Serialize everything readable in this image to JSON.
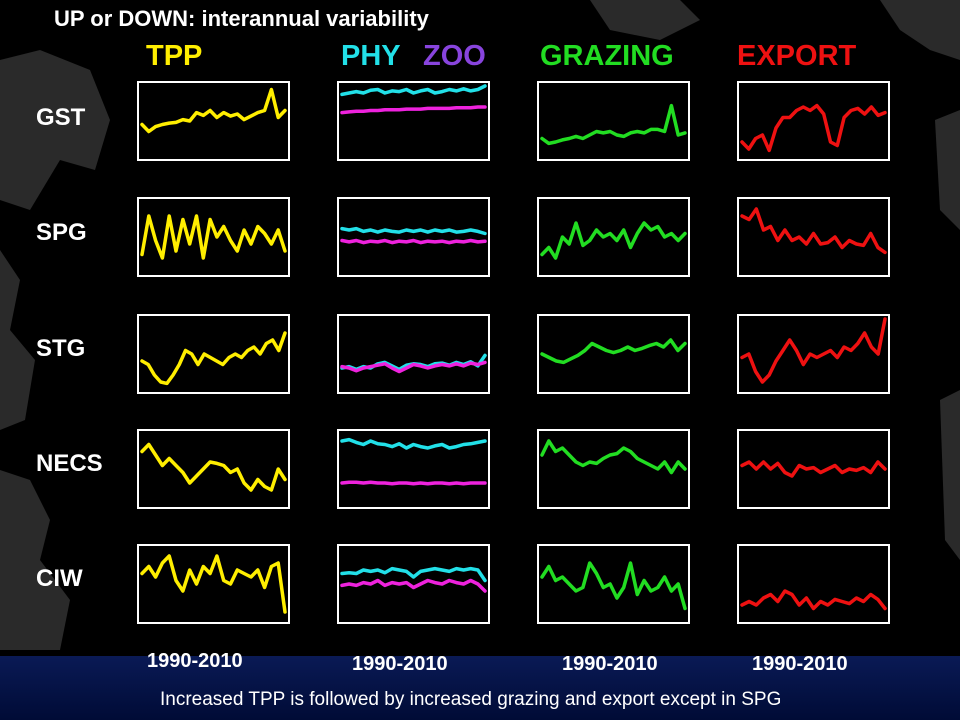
{
  "title": "UP or DOWN: interannual variability",
  "columns": [
    {
      "label": "TPP",
      "color": "#ffee00"
    },
    {
      "label": "PHY",
      "color": "#22e0e8"
    },
    {
      "label": "ZOO",
      "color": "#8844dd"
    },
    {
      "label": "GRAZING",
      "color": "#22dd22"
    },
    {
      "label": "EXPORT",
      "color": "#ee1111"
    }
  ],
  "rows": [
    "GST",
    "SPG",
    "STG",
    "NECS",
    "CIW"
  ],
  "year_labels": [
    "1990-2010",
    "1990-2010",
    "1990-2010",
    "1990-2010"
  ],
  "caption": "Increased TPP is followed by increased grazing and export except in SPG",
  "chart_data": {
    "type": "line",
    "x_range": [
      1990,
      2010
    ],
    "panels": [
      {
        "row": "GST",
        "column": "TPP",
        "series": [
          {
            "color": "#ffee00",
            "values": [
              0.45,
              0.35,
              0.42,
              0.45,
              0.47,
              0.48,
              0.52,
              0.5,
              0.62,
              0.58,
              0.65,
              0.55,
              0.62,
              0.57,
              0.6,
              0.52,
              0.57,
              0.62,
              0.65,
              0.95,
              0.55,
              0.65
            ]
          }
        ]
      },
      {
        "row": "GST",
        "column": "PHY ZOO",
        "series": [
          {
            "color": "#22e0e8",
            "values": [
              0.88,
              0.9,
              0.92,
              0.9,
              0.94,
              0.95,
              0.9,
              0.93,
              0.92,
              0.95,
              0.9,
              0.93,
              0.95,
              0.9,
              0.92,
              0.95,
              0.93,
              0.96,
              0.93,
              0.95,
              1.0
            ]
          },
          {
            "color": "#ee22dd",
            "values": [
              0.62,
              0.63,
              0.64,
              0.64,
              0.65,
              0.65,
              0.66,
              0.66,
              0.66,
              0.67,
              0.67,
              0.67,
              0.68,
              0.68,
              0.68,
              0.68,
              0.69,
              0.69,
              0.69,
              0.7,
              0.7
            ]
          }
        ]
      },
      {
        "row": "GST",
        "column": "GRAZING",
        "series": [
          {
            "color": "#22dd22",
            "values": [
              0.25,
              0.18,
              0.2,
              0.23,
              0.25,
              0.28,
              0.25,
              0.3,
              0.35,
              0.33,
              0.35,
              0.3,
              0.28,
              0.33,
              0.35,
              0.33,
              0.38,
              0.38,
              0.35,
              0.72,
              0.3,
              0.33
            ]
          }
        ]
      },
      {
        "row": "GST",
        "column": "EXPORT",
        "series": [
          {
            "color": "#ee1111",
            "values": [
              0.2,
              0.1,
              0.25,
              0.3,
              0.08,
              0.4,
              0.55,
              0.55,
              0.65,
              0.7,
              0.65,
              0.72,
              0.6,
              0.2,
              0.15,
              0.55,
              0.65,
              0.68,
              0.6,
              0.7,
              0.58,
              0.62
            ]
          }
        ]
      },
      {
        "row": "SPG",
        "column": "TPP",
        "series": [
          {
            "color": "#ffee00",
            "values": [
              0.25,
              0.8,
              0.45,
              0.2,
              0.8,
              0.3,
              0.75,
              0.4,
              0.8,
              0.2,
              0.75,
              0.5,
              0.65,
              0.45,
              0.3,
              0.6,
              0.4,
              0.65,
              0.55,
              0.4,
              0.6,
              0.3
            ]
          }
        ]
      },
      {
        "row": "SPG",
        "column": "PHY ZOO",
        "series": [
          {
            "color": "#22e0e8",
            "values": [
              0.62,
              0.6,
              0.62,
              0.58,
              0.6,
              0.57,
              0.6,
              0.58,
              0.57,
              0.6,
              0.58,
              0.6,
              0.57,
              0.6,
              0.58,
              0.6,
              0.57,
              0.58,
              0.6,
              0.58,
              0.55
            ]
          },
          {
            "color": "#ee22dd",
            "values": [
              0.45,
              0.43,
              0.45,
              0.42,
              0.44,
              0.43,
              0.45,
              0.42,
              0.44,
              0.43,
              0.45,
              0.42,
              0.44,
              0.43,
              0.44,
              0.42,
              0.44,
              0.43,
              0.45,
              0.43,
              0.44
            ]
          }
        ]
      },
      {
        "row": "SPG",
        "column": "GRAZING",
        "series": [
          {
            "color": "#22dd22",
            "values": [
              0.25,
              0.35,
              0.2,
              0.5,
              0.4,
              0.7,
              0.38,
              0.45,
              0.6,
              0.5,
              0.55,
              0.45,
              0.6,
              0.35,
              0.55,
              0.7,
              0.6,
              0.65,
              0.5,
              0.55,
              0.45,
              0.55
            ]
          }
        ]
      },
      {
        "row": "SPG",
        "column": "EXPORT",
        "series": [
          {
            "color": "#ee1111",
            "values": [
              0.8,
              0.75,
              0.9,
              0.6,
              0.65,
              0.45,
              0.6,
              0.45,
              0.5,
              0.4,
              0.55,
              0.4,
              0.42,
              0.5,
              0.35,
              0.45,
              0.4,
              0.38,
              0.55,
              0.35,
              0.28
            ]
          }
        ]
      },
      {
        "row": "STG",
        "column": "TPP",
        "series": [
          {
            "color": "#ffee00",
            "values": [
              0.4,
              0.35,
              0.2,
              0.1,
              0.08,
              0.2,
              0.35,
              0.55,
              0.5,
              0.35,
              0.5,
              0.45,
              0.4,
              0.35,
              0.45,
              0.5,
              0.45,
              0.55,
              0.6,
              0.5,
              0.65,
              0.7,
              0.55,
              0.8
            ]
          }
        ]
      },
      {
        "row": "STG",
        "column": "PHY ZOO",
        "series": [
          {
            "color": "#22e0e8",
            "values": [
              0.3,
              0.32,
              0.28,
              0.32,
              0.3,
              0.36,
              0.38,
              0.33,
              0.28,
              0.34,
              0.36,
              0.35,
              0.32,
              0.36,
              0.37,
              0.34,
              0.38,
              0.35,
              0.39,
              0.33,
              0.48
            ]
          },
          {
            "color": "#ee22dd",
            "values": [
              0.32,
              0.3,
              0.26,
              0.3,
              0.32,
              0.34,
              0.36,
              0.3,
              0.25,
              0.3,
              0.35,
              0.33,
              0.3,
              0.33,
              0.35,
              0.33,
              0.36,
              0.33,
              0.37,
              0.35,
              0.38
            ]
          }
        ]
      },
      {
        "row": "STG",
        "column": "GRAZING",
        "series": [
          {
            "color": "#22dd22",
            "values": [
              0.5,
              0.45,
              0.4,
              0.38,
              0.43,
              0.48,
              0.55,
              0.65,
              0.6,
              0.55,
              0.52,
              0.55,
              0.6,
              0.55,
              0.58,
              0.62,
              0.65,
              0.6,
              0.7,
              0.55,
              0.65
            ]
          }
        ]
      },
      {
        "row": "STG",
        "column": "EXPORT",
        "series": [
          {
            "color": "#ee1111",
            "values": [
              0.45,
              0.5,
              0.25,
              0.1,
              0.2,
              0.4,
              0.55,
              0.7,
              0.55,
              0.35,
              0.5,
              0.45,
              0.5,
              0.55,
              0.45,
              0.6,
              0.55,
              0.65,
              0.8,
              0.6,
              0.5,
              1.0
            ]
          }
        ]
      },
      {
        "row": "NECS",
        "column": "TPP",
        "series": [
          {
            "color": "#ffee00",
            "values": [
              0.75,
              0.85,
              0.7,
              0.55,
              0.65,
              0.55,
              0.45,
              0.3,
              0.4,
              0.5,
              0.6,
              0.58,
              0.55,
              0.45,
              0.5,
              0.3,
              0.2,
              0.35,
              0.25,
              0.2,
              0.5,
              0.35
            ]
          }
        ]
      },
      {
        "row": "NECS",
        "column": "PHY ZOO",
        "series": [
          {
            "color": "#22e0e8",
            "values": [
              0.9,
              0.92,
              0.88,
              0.85,
              0.9,
              0.86,
              0.85,
              0.82,
              0.86,
              0.8,
              0.85,
              0.82,
              0.8,
              0.83,
              0.85,
              0.8,
              0.82,
              0.85,
              0.86,
              0.88,
              0.9
            ]
          },
          {
            "color": "#ee22dd",
            "values": [
              0.3,
              0.31,
              0.31,
              0.3,
              0.31,
              0.3,
              0.3,
              0.29,
              0.3,
              0.3,
              0.29,
              0.3,
              0.29,
              0.3,
              0.3,
              0.29,
              0.3,
              0.29,
              0.3,
              0.3,
              0.3
            ]
          }
        ]
      },
      {
        "row": "NECS",
        "column": "GRAZING",
        "series": [
          {
            "color": "#22dd22",
            "values": [
              0.7,
              0.9,
              0.75,
              0.8,
              0.7,
              0.6,
              0.55,
              0.6,
              0.58,
              0.65,
              0.7,
              0.72,
              0.8,
              0.75,
              0.65,
              0.6,
              0.55,
              0.5,
              0.6,
              0.45,
              0.6,
              0.5
            ]
          }
        ]
      },
      {
        "row": "NECS",
        "column": "EXPORT",
        "series": [
          {
            "color": "#ee1111",
            "values": [
              0.55,
              0.6,
              0.5,
              0.6,
              0.5,
              0.58,
              0.45,
              0.4,
              0.55,
              0.5,
              0.52,
              0.45,
              0.5,
              0.55,
              0.45,
              0.5,
              0.48,
              0.52,
              0.45,
              0.6,
              0.5
            ]
          }
        ]
      },
      {
        "row": "CIW",
        "column": "TPP",
        "series": [
          {
            "color": "#ffee00",
            "values": [
              0.65,
              0.75,
              0.6,
              0.8,
              0.9,
              0.55,
              0.4,
              0.7,
              0.5,
              0.75,
              0.65,
              0.9,
              0.55,
              0.5,
              0.7,
              0.65,
              0.6,
              0.7,
              0.45,
              0.75,
              0.8,
              0.1
            ]
          }
        ]
      },
      {
        "row": "CIW",
        "column": "PHY ZOO",
        "series": [
          {
            "color": "#22e0e8",
            "values": [
              0.65,
              0.66,
              0.65,
              0.7,
              0.68,
              0.7,
              0.66,
              0.72,
              0.7,
              0.68,
              0.6,
              0.68,
              0.7,
              0.72,
              0.7,
              0.68,
              0.72,
              0.7,
              0.72,
              0.7,
              0.55
            ]
          },
          {
            "color": "#ee22dd",
            "values": [
              0.48,
              0.5,
              0.48,
              0.52,
              0.5,
              0.55,
              0.48,
              0.52,
              0.5,
              0.52,
              0.45,
              0.5,
              0.55,
              0.52,
              0.5,
              0.55,
              0.52,
              0.5,
              0.55,
              0.5,
              0.4
            ]
          }
        ]
      },
      {
        "row": "CIW",
        "column": "GRAZING",
        "series": [
          {
            "color": "#22dd22",
            "values": [
              0.6,
              0.75,
              0.55,
              0.6,
              0.5,
              0.4,
              0.45,
              0.8,
              0.65,
              0.45,
              0.5,
              0.3,
              0.45,
              0.8,
              0.35,
              0.55,
              0.4,
              0.45,
              0.6,
              0.4,
              0.5,
              0.15
            ]
          }
        ]
      },
      {
        "row": "CIW",
        "column": "EXPORT",
        "series": [
          {
            "color": "#ee1111",
            "values": [
              0.2,
              0.25,
              0.2,
              0.3,
              0.35,
              0.25,
              0.4,
              0.35,
              0.2,
              0.3,
              0.15,
              0.25,
              0.2,
              0.28,
              0.25,
              0.22,
              0.3,
              0.25,
              0.35,
              0.28,
              0.15
            ]
          }
        ]
      }
    ]
  }
}
